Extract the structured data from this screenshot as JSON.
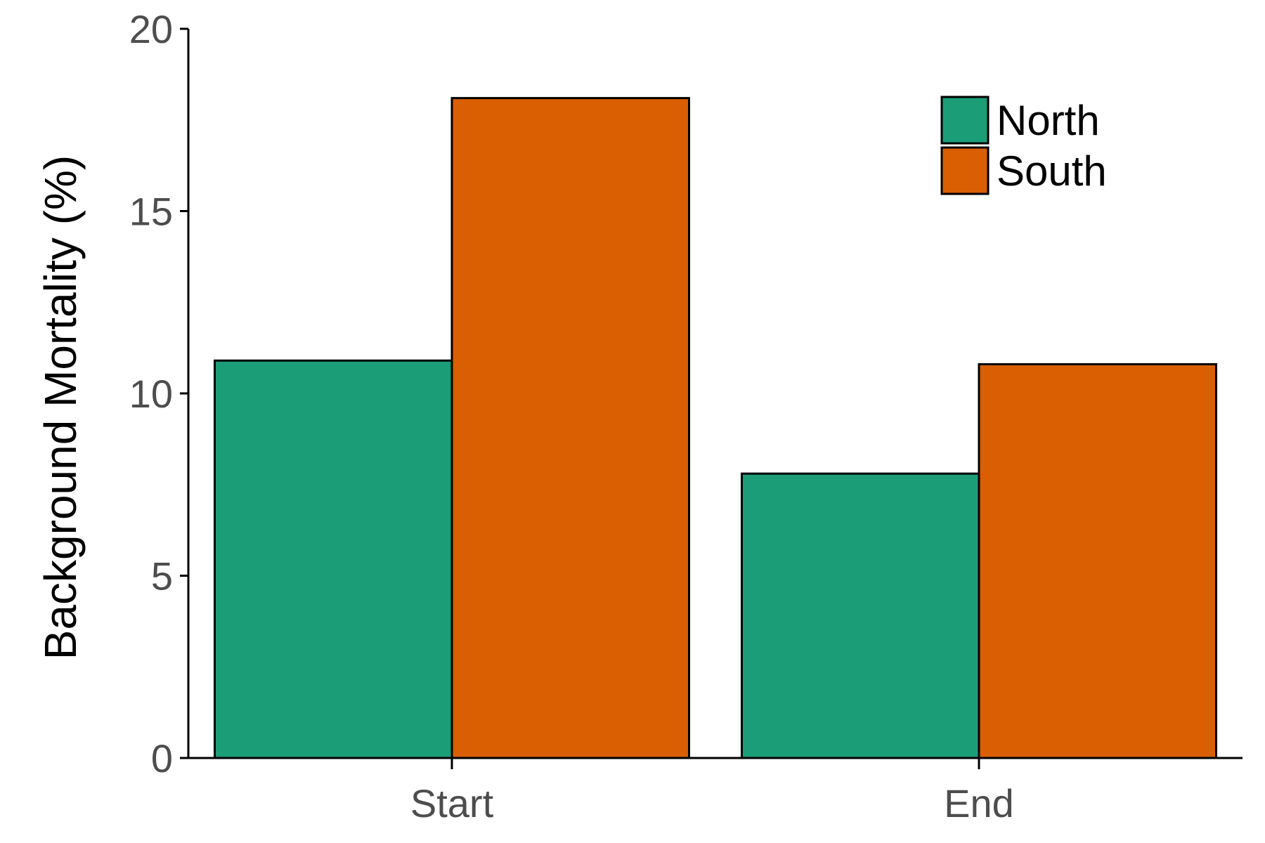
{
  "chart_data": {
    "type": "bar",
    "title": "",
    "xlabel": "",
    "ylabel": "Background Mortality (%)",
    "categories": [
      "Start",
      "End"
    ],
    "series": [
      {
        "name": "North",
        "color": "#1b9e77",
        "values": [
          10.9,
          7.8
        ]
      },
      {
        "name": "South",
        "color": "#d95f02",
        "values": [
          18.1,
          10.8
        ]
      }
    ],
    "ylim": [
      0,
      20
    ],
    "yticks": [
      "0",
      "5",
      "10",
      "15",
      "20"
    ],
    "grid": false,
    "legend_position": "top-right"
  }
}
